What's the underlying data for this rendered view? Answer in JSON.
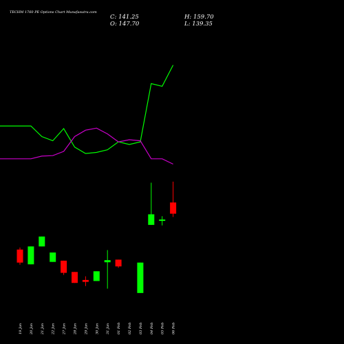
{
  "header": {
    "title": "TECHM 1760 PE Options Chart Munafasutra.com",
    "close_text": "C: 141.25",
    "high_text": "H: 159.70",
    "open_text": "O: 147.70",
    "low_text": "L: 139.35"
  },
  "colors": {
    "background": "#000000",
    "up": "#00ff00",
    "down": "#ff0000",
    "line_green": "#00ff00",
    "line_purple": "#cc00cc",
    "text": "#ffffff"
  },
  "chart_data": {
    "type": "candlestick",
    "categories": [
      "19 Jan",
      "20 Jan",
      "21 Jan",
      "22 Jan",
      "27 Jan",
      "28 Jan",
      "29 Jan",
      "30 Jan",
      "31 Jan",
      "01 Feb",
      "02 Feb",
      "03 Feb",
      "04 Feb",
      "05 Feb",
      "06 Feb"
    ],
    "candles": [
      {
        "open": 120.6,
        "high": 121.8,
        "low": 111.9,
        "close": 113.1
      },
      {
        "open": 112.1,
        "high": 122.4,
        "low": 112.1,
        "close": 122.4
      },
      {
        "open": 122.4,
        "high": 128.1,
        "low": 122.4,
        "close": 128.1
      },
      {
        "open": 113.5,
        "high": 118.9,
        "low": 113.5,
        "close": 118.9
      },
      {
        "open": 114.2,
        "high": 114.2,
        "low": 106.0,
        "close": 107.2
      },
      {
        "open": 107.7,
        "high": 107.7,
        "low": 101.4,
        "close": 101.4
      },
      {
        "open": 103.1,
        "high": 105.2,
        "low": 99.6,
        "close": 102.0
      },
      {
        "open": 102.5,
        "high": 108.1,
        "low": 102.5,
        "close": 108.1
      },
      {
        "open": 113.3,
        "high": 120.3,
        "low": 98.1,
        "close": 114.5
      },
      {
        "open": 114.8,
        "high": 114.8,
        "low": 110.1,
        "close": 110.9
      },
      {
        "open": 95.6,
        "high": 113.1,
        "low": 95.6,
        "close": 113.1
      },
      {
        "open": 134.8,
        "high": 159.1,
        "low": 134.8,
        "close": 140.9
      },
      {
        "open": 137.9,
        "high": 139.8,
        "low": 134.5,
        "close": 137.9
      },
      {
        "open": 147.7,
        "high": 159.7,
        "low": 139.35,
        "close": 141.25
      }
    ],
    "candle_dates": [
      "19 Jan",
      "20 Jan",
      "21 Jan",
      "22 Jan",
      "27 Jan",
      "28 Jan",
      "29 Jan",
      "30 Jan",
      "31 Jan",
      "01 Feb",
      "03 Feb",
      "04 Feb",
      "05 Feb",
      "06 Feb"
    ],
    "series": [
      {
        "values": [
          100,
          100,
          80,
          72,
          95,
          60,
          48,
          50,
          55,
          70,
          65,
          70,
          180,
          175,
          215
        ]
      },
      {
        "values": [
          38,
          38,
          43,
          44,
          52,
          80,
          92,
          96,
          85,
          70,
          74,
          72,
          38,
          38,
          28
        ]
      }
    ],
    "line_x": [
      "19 Jan",
      "20 Jan",
      "21 Jan",
      "22 Jan",
      "27 Jan",
      "28 Jan",
      "29 Jan",
      "30 Jan",
      "31 Jan",
      "01 Feb",
      "02 Feb",
      "03 Feb",
      "04 Feb",
      "05 Feb",
      "06 Feb"
    ],
    "price_range": [
      90,
      170
    ],
    "line_range": [
      0,
      260
    ]
  }
}
